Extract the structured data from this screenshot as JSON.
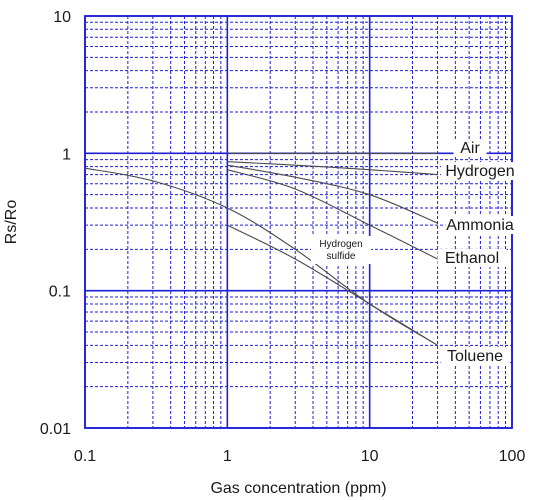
{
  "chart_data": {
    "type": "line",
    "x_scale": "log",
    "y_scale": "log",
    "xlim": [
      0.1,
      100
    ],
    "ylim": [
      0.01,
      10
    ],
    "xlabel": "Gas concentration (ppm)",
    "ylabel": "Rs/Ro",
    "x_ticks": [
      {
        "value": 0.1,
        "label": "0.1"
      },
      {
        "value": 1,
        "label": "1"
      },
      {
        "value": 10,
        "label": "10"
      },
      {
        "value": 100,
        "label": "100"
      }
    ],
    "y_ticks": [
      {
        "value": 0.01,
        "label": "0.01"
      },
      {
        "value": 0.1,
        "label": "0.1"
      },
      {
        "value": 1,
        "label": "1"
      },
      {
        "value": 10,
        "label": "10"
      }
    ],
    "grid": true,
    "colors": {
      "grid": "#1f1fd6",
      "grid_minor": "#1f1fd6",
      "curve": "#4a4a4a",
      "axis": "#1f1fd6"
    },
    "series": [
      {
        "name": "Air",
        "points": [
          [
            1,
            1
          ],
          [
            30,
            1
          ]
        ]
      },
      {
        "name": "Hydrogen",
        "points": [
          [
            1,
            0.87
          ],
          [
            3,
            0.82
          ],
          [
            10,
            0.76
          ],
          [
            30,
            0.7
          ]
        ]
      },
      {
        "name": "Ammonia",
        "points": [
          [
            1,
            0.82
          ],
          [
            3,
            0.67
          ],
          [
            10,
            0.5
          ],
          [
            30,
            0.31
          ]
        ]
      },
      {
        "name": "Ethanol",
        "points": [
          [
            1,
            0.76
          ],
          [
            3,
            0.55
          ],
          [
            10,
            0.3
          ],
          [
            30,
            0.17
          ]
        ]
      },
      {
        "name": "Hydrogen sulfide",
        "points": [
          [
            0.1,
            0.78
          ],
          [
            0.3,
            0.63
          ],
          [
            1,
            0.4
          ],
          [
            3,
            0.2
          ],
          [
            10,
            0.08
          ],
          [
            30,
            0.04
          ]
        ]
      },
      {
        "name": "Toluene",
        "points": [
          [
            1,
            0.3
          ],
          [
            3,
            0.17
          ],
          [
            10,
            0.08
          ],
          [
            30,
            0.04
          ]
        ]
      }
    ],
    "annotations": [
      {
        "text": "Hydrogen",
        "line": 1
      },
      {
        "text": "sulfide",
        "line": 2
      }
    ]
  }
}
